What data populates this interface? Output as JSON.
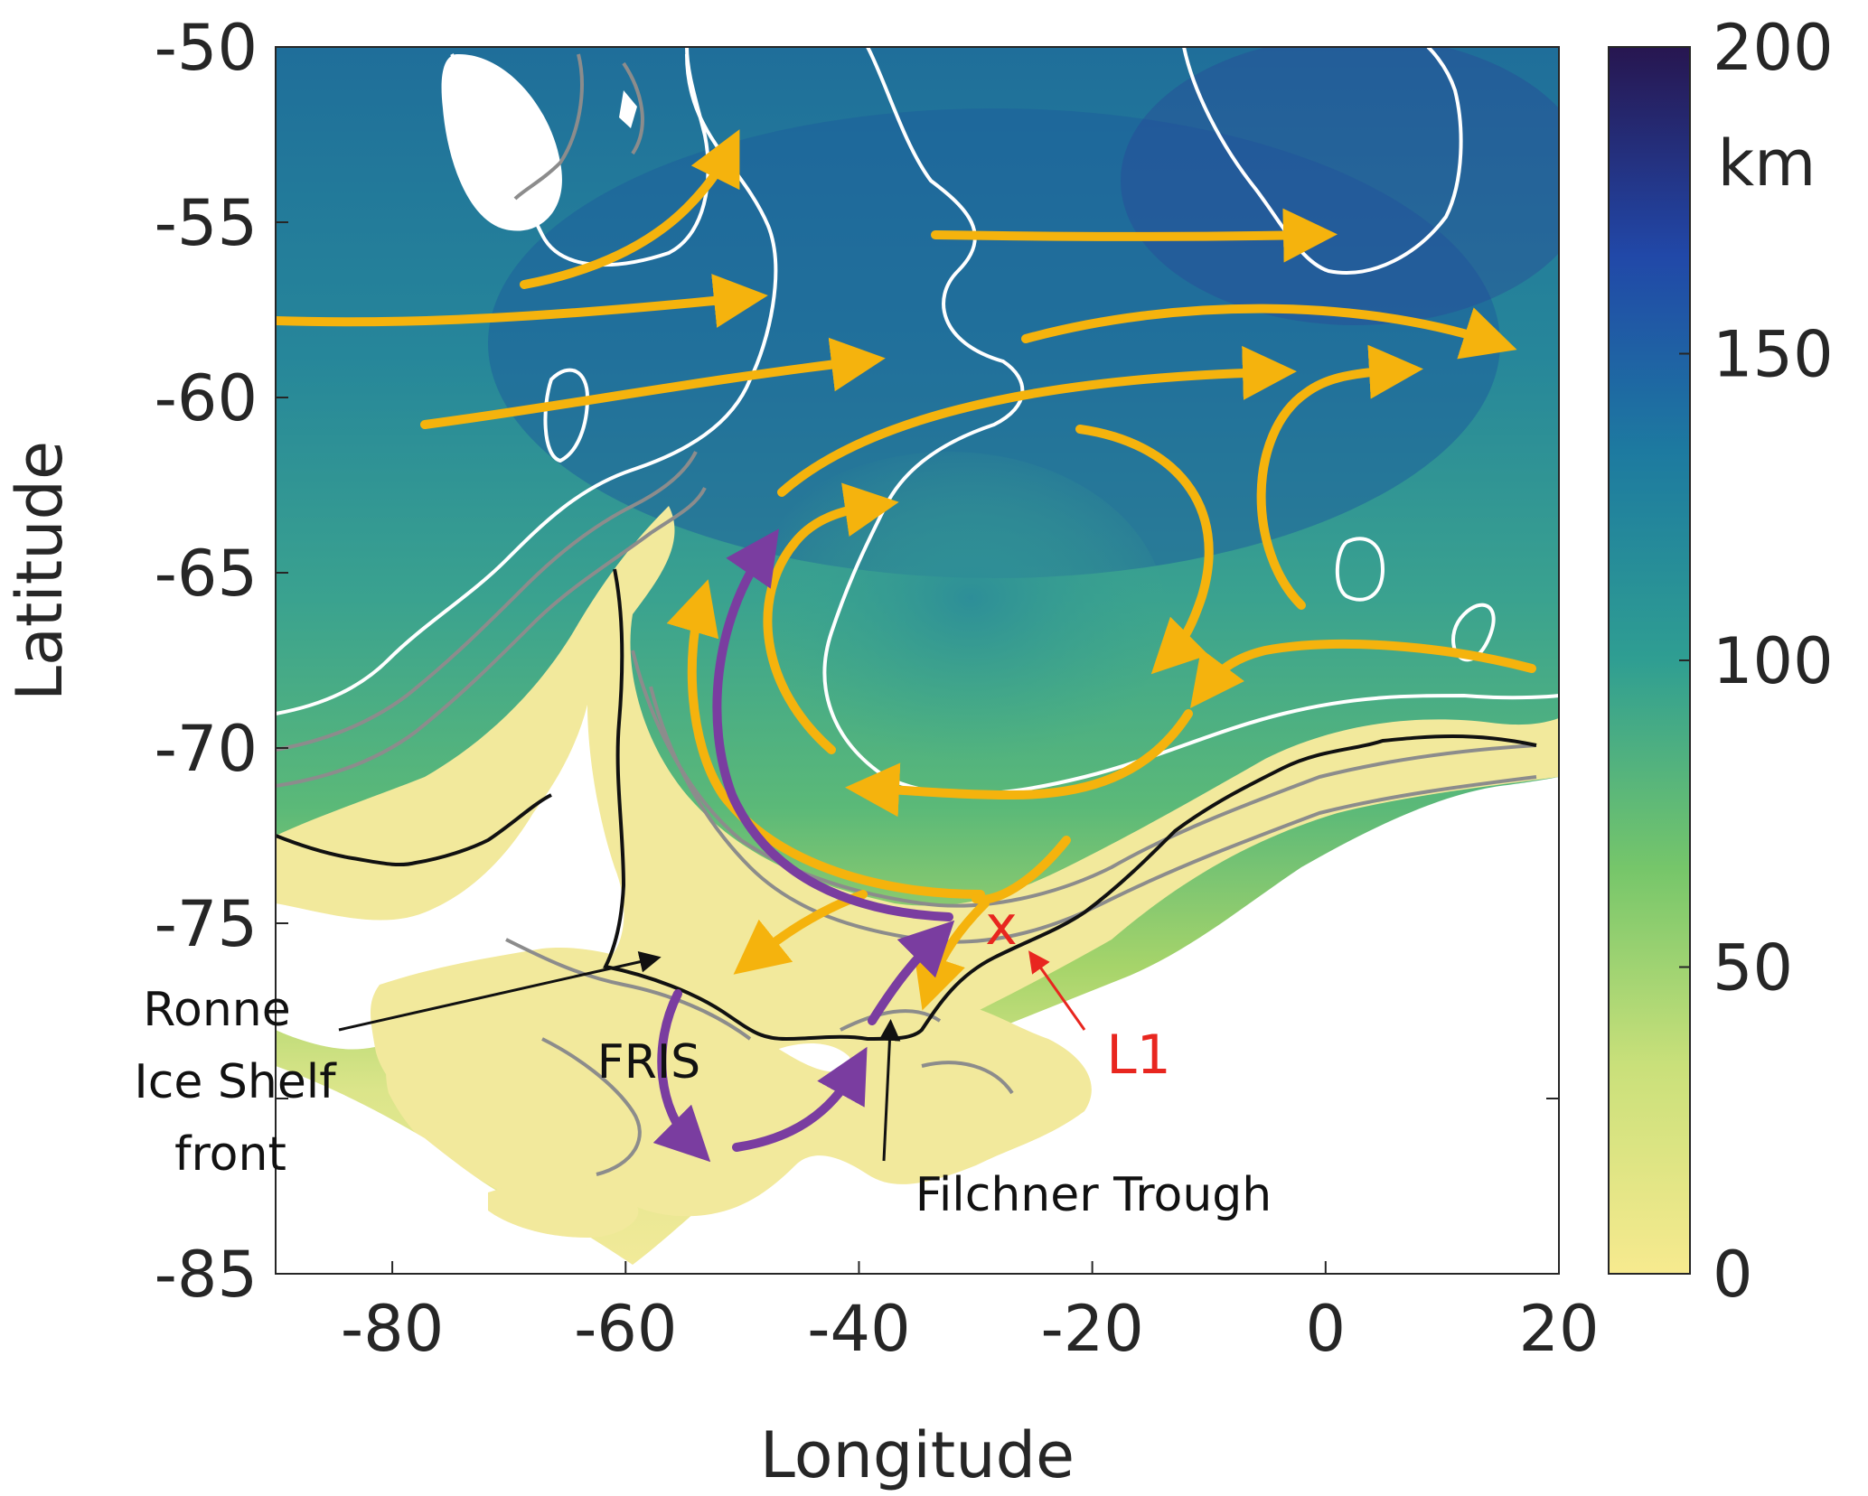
{
  "map": {
    "xlabel": "Longitude",
    "ylabel": "Latitude",
    "x_ticks": [
      "-80",
      "-60",
      "-40",
      "-20",
      "0",
      "20"
    ],
    "y_ticks": [
      "-50",
      "-55",
      "-60",
      "-65",
      "-70",
      "-75",
      "-85"
    ],
    "x_range": [
      -90,
      20
    ],
    "y_range": [
      -85,
      -50
    ],
    "colorbar": {
      "ticks": [
        "200",
        "150",
        "100",
        "50",
        "0"
      ],
      "unit": "km",
      "range": [
        0,
        200
      ],
      "colors": [
        "#f7ea8f",
        "#9bd36a",
        "#3fae8a",
        "#2a8a99",
        "#1f5f9e",
        "#2a2f8f",
        "#26164d"
      ]
    },
    "annotations": {
      "ronne": [
        "Ronne",
        "Ice Shelf",
        "front"
      ],
      "fris": "FRIS",
      "filchner": "Filchner Trough",
      "l1": "L1",
      "l1_marker": "x"
    },
    "arrow_colors": {
      "orange": "#f5b30d",
      "purple": "#7a3da0",
      "red": "#e8261f"
    }
  }
}
